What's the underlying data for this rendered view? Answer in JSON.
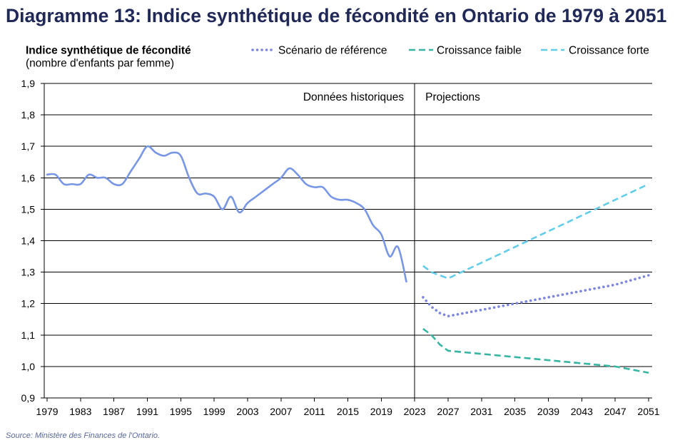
{
  "source": "Source: Ministère des Finances de l'Ontario.",
  "colors": {
    "title": "#1F2857",
    "source": "#58689A"
  },
  "chart_data": {
    "type": "line",
    "title": "Diagramme 13: Indice synthétique de fécondité en Ontario de 1979 à 2051",
    "ylabel": "Indice synthétique de fécondité",
    "ylabel_sub": "(nombre d'enfants par femme)",
    "xlim": [
      1979,
      2051
    ],
    "ylim": [
      0.9,
      1.9
    ],
    "x_ticks": [
      1979,
      1983,
      1987,
      1991,
      1995,
      1999,
      2003,
      2007,
      2011,
      2015,
      2019,
      2023,
      2027,
      2031,
      2035,
      2039,
      2043,
      2047,
      2051
    ],
    "y_ticks": [
      0.9,
      1.0,
      1.1,
      1.2,
      1.3,
      1.4,
      1.5,
      1.6,
      1.7,
      1.8,
      1.9
    ],
    "y_tick_labels": [
      "0,9",
      "1,0",
      "1,1",
      "1,2",
      "1,3",
      "1,4",
      "1,5",
      "1,6",
      "1,7",
      "1,8",
      "1,9"
    ],
    "grid": true,
    "legend_position": "top",
    "divider_year": 2023,
    "regions": [
      "Données historiques",
      "Projections"
    ],
    "series": [
      {
        "x": [
          1979,
          1980,
          1981,
          1982,
          1983,
          1984,
          1985,
          1986,
          1987,
          1988,
          1989,
          1990,
          1991,
          1992,
          1993,
          1994,
          1995,
          1996,
          1997,
          1998,
          1999,
          2000,
          2001,
          2002,
          2003,
          2004,
          2005,
          2006,
          2007,
          2008,
          2009,
          2010,
          2011,
          2012,
          2013,
          2014,
          2015,
          2016,
          2017,
          2018,
          2019,
          2020,
          2021,
          2022
        ],
        "values": [
          1.61,
          1.61,
          1.58,
          1.58,
          1.58,
          1.61,
          1.6,
          1.6,
          1.58,
          1.58,
          1.62,
          1.66,
          1.7,
          1.68,
          1.67,
          1.68,
          1.67,
          1.6,
          1.55,
          1.55,
          1.54,
          1.5,
          1.54,
          1.49,
          1.52,
          1.54,
          1.56,
          1.58,
          1.6,
          1.63,
          1.61,
          1.58,
          1.57,
          1.57,
          1.54,
          1.53,
          1.53,
          1.52,
          1.5,
          1.45,
          1.42,
          1.35,
          1.38,
          1.27
        ],
        "color": "#7896E6"
      },
      {
        "name": "Scénario de référence",
        "x": [
          2024,
          2025,
          2026,
          2027,
          2031,
          2035,
          2039,
          2043,
          2047,
          2051
        ],
        "values": [
          1.22,
          1.19,
          1.17,
          1.16,
          1.18,
          1.2,
          1.22,
          1.24,
          1.26,
          1.29
        ],
        "color": "#7C86DF"
      },
      {
        "name": "Croissance faible",
        "x": [
          2024,
          2025,
          2026,
          2027,
          2031,
          2035,
          2039,
          2043,
          2047,
          2051
        ],
        "values": [
          1.12,
          1.1,
          1.07,
          1.05,
          1.04,
          1.03,
          1.02,
          1.01,
          1.0,
          0.98
        ],
        "color": "#35B5A2"
      },
      {
        "name": "Croissance forte",
        "x": [
          2024,
          2025,
          2026,
          2027,
          2031,
          2035,
          2039,
          2043,
          2047,
          2051
        ],
        "values": [
          1.32,
          1.3,
          1.29,
          1.28,
          1.33,
          1.38,
          1.43,
          1.48,
          1.53,
          1.58
        ],
        "color": "#62CDEB"
      }
    ]
  }
}
